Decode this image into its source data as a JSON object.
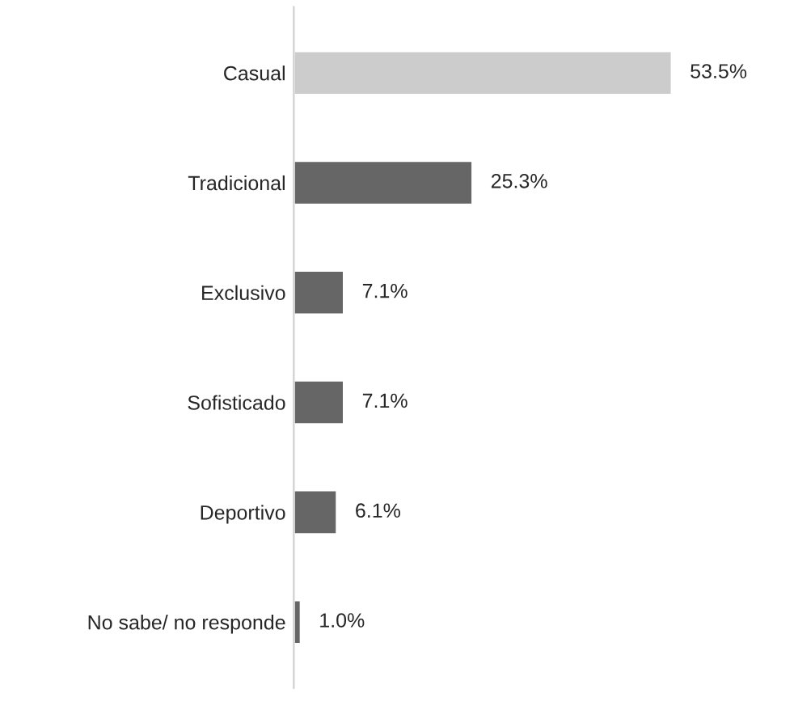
{
  "chart_data": {
    "type": "bar",
    "orientation": "horizontal",
    "categories": [
      "Casual",
      "Tradicional",
      "Exclusivo",
      "Sofisticado",
      "Deportivo",
      "No sabe/ no responde"
    ],
    "values": [
      53.5,
      25.3,
      7.1,
      7.1,
      6.1,
      1.0
    ],
    "value_labels": [
      "53.5%",
      "25.3%",
      "7.1%",
      "7.1%",
      "6.1%",
      "1.0%"
    ],
    "colors": [
      "#cccccc",
      "#666666",
      "#666666",
      "#666666",
      "#666666",
      "#666666"
    ],
    "grid": false,
    "legend": false
  }
}
